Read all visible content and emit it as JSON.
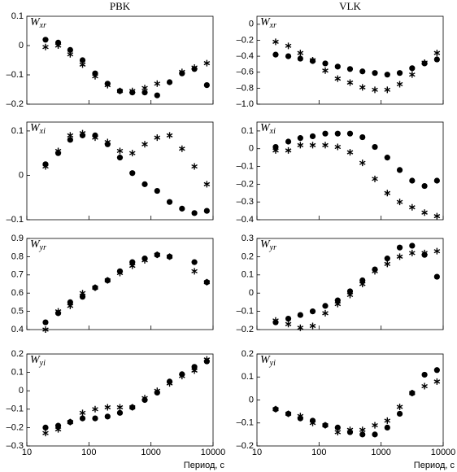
{
  "chart_data": [
    {
      "type": "scatter",
      "title": "PBK",
      "ylabel": "W",
      "ylabel_sub": "xr",
      "log_x": true,
      "show_xtick_labels": false,
      "x": [
        20,
        32,
        50,
        79,
        126,
        200,
        316,
        501,
        794,
        1259,
        1995,
        3162,
        5012,
        7943
      ],
      "xlim": [
        10,
        10000
      ],
      "xticks": [
        10,
        100,
        1000,
        10000
      ],
      "ylim": [
        -0.2,
        0.1
      ],
      "yticks": [
        {
          "value": -0.2,
          "label": "–0.2"
        },
        {
          "value": -0.1,
          "label": "–0.1"
        },
        0,
        0.1
      ],
      "series": [
        {
          "marker": "circle",
          "color": "#000000",
          "values": [
            0.02,
            0.01,
            -0.015,
            -0.05,
            -0.095,
            -0.13,
            -0.155,
            -0.16,
            -0.16,
            -0.17,
            -0.125,
            -0.095,
            -0.08,
            -0.135
          ]
        },
        {
          "marker": "star",
          "color": "#000000",
          "values": [
            -0.005,
            0,
            -0.03,
            -0.065,
            -0.105,
            -0.135,
            -0.155,
            -0.155,
            -0.145,
            -0.13,
            null,
            -0.09,
            -0.075,
            -0.06
          ]
        }
      ]
    },
    {
      "type": "scatter",
      "title": "VLK",
      "ylabel": "W",
      "ylabel_sub": "xr",
      "log_x": true,
      "show_xtick_labels": false,
      "x": [
        20,
        32,
        50,
        79,
        126,
        200,
        316,
        501,
        794,
        1259,
        1995,
        3162,
        5012,
        7943
      ],
      "xlim": [
        10,
        10000
      ],
      "xticks": [
        10,
        100,
        1000,
        10000
      ],
      "ylim": [
        -1.0,
        0.1
      ],
      "yticks": [
        {
          "value": -1.0,
          "label": "–1.0"
        },
        {
          "value": -0.8,
          "label": "–0.8"
        },
        {
          "value": -0.6,
          "label": "–0.6"
        },
        {
          "value": -0.4,
          "label": "–0.4"
        },
        {
          "value": -0.2,
          "label": "–0.2"
        },
        0
      ],
      "series": [
        {
          "marker": "circle",
          "color": "#000000",
          "values": [
            -0.38,
            -0.4,
            -0.43,
            -0.46,
            -0.49,
            -0.53,
            -0.56,
            -0.59,
            -0.61,
            -0.63,
            -0.61,
            -0.55,
            -0.49,
            -0.44
          ]
        },
        {
          "marker": "star",
          "color": "#000000",
          "values": [
            -0.22,
            -0.27,
            -0.36,
            -0.45,
            -0.58,
            -0.68,
            -0.73,
            -0.79,
            -0.82,
            -0.82,
            -0.75,
            -0.63,
            -0.48,
            -0.36
          ]
        }
      ]
    },
    {
      "type": "scatter",
      "ylabel": "W",
      "ylabel_sub": "xi",
      "log_x": true,
      "show_xtick_labels": false,
      "x": [
        20,
        32,
        50,
        79,
        126,
        200,
        316,
        501,
        794,
        1259,
        1995,
        3162,
        5012,
        7943
      ],
      "xlim": [
        10,
        10000
      ],
      "xticks": [
        10,
        100,
        1000,
        10000
      ],
      "ylim": [
        -0.1,
        0.12
      ],
      "yticks": [
        {
          "value": -0.1,
          "label": "–0.1"
        },
        0,
        0.1
      ],
      "series": [
        {
          "marker": "circle",
          "color": "#000000",
          "values": [
            0.025,
            0.05,
            0.08,
            0.09,
            0.09,
            0.07,
            0.04,
            0.005,
            -0.02,
            -0.035,
            -0.06,
            -0.075,
            -0.085,
            -0.08
          ]
        },
        {
          "marker": "star",
          "color": "#000000",
          "values": [
            0.02,
            0.055,
            0.09,
            0.095,
            0.085,
            0.075,
            0.055,
            0.05,
            0.07,
            0.085,
            0.09,
            0.06,
            0.02,
            -0.02
          ]
        }
      ]
    },
    {
      "type": "scatter",
      "ylabel": "W",
      "ylabel_sub": "xi",
      "log_x": true,
      "show_xtick_labels": false,
      "x": [
        20,
        32,
        50,
        79,
        126,
        200,
        316,
        501,
        794,
        1259,
        1995,
        3162,
        5012,
        7943
      ],
      "xlim": [
        10,
        10000
      ],
      "xticks": [
        10,
        100,
        1000,
        10000
      ],
      "ylim": [
        -0.4,
        0.15
      ],
      "yticks": [
        {
          "value": -0.4,
          "label": "–0.4"
        },
        {
          "value": -0.3,
          "label": "–0.3"
        },
        {
          "value": -0.2,
          "label": "–0.2"
        },
        {
          "value": -0.1,
          "label": "–0.1"
        },
        0,
        0.1
      ],
      "series": [
        {
          "marker": "circle",
          "color": "#000000",
          "values": [
            0.01,
            0.04,
            0.06,
            0.07,
            0.085,
            0.085,
            0.085,
            0.065,
            0.01,
            -0.05,
            -0.12,
            -0.18,
            -0.21,
            -0.18
          ]
        },
        {
          "marker": "star",
          "color": "#000000",
          "values": [
            -0.01,
            -0.01,
            0.02,
            0.02,
            0.02,
            0.01,
            -0.02,
            -0.08,
            -0.17,
            -0.25,
            -0.3,
            -0.33,
            -0.36,
            -0.38
          ]
        }
      ]
    },
    {
      "type": "scatter",
      "ylabel": "W",
      "ylabel_sub": "yr",
      "log_x": true,
      "show_xtick_labels": false,
      "x": [
        20,
        32,
        50,
        79,
        126,
        200,
        316,
        501,
        794,
        1259,
        1995,
        3162,
        5012,
        7943
      ],
      "xlim": [
        10,
        10000
      ],
      "xticks": [
        10,
        100,
        1000,
        10000
      ],
      "ylim": [
        0.4,
        0.9
      ],
      "yticks": [
        0.4,
        0.5,
        0.6,
        0.7,
        0.8,
        0.9
      ],
      "series": [
        {
          "marker": "circle",
          "color": "#000000",
          "values": [
            0.44,
            0.49,
            0.55,
            0.58,
            0.63,
            0.67,
            0.72,
            0.77,
            0.79,
            0.81,
            0.8,
            null,
            0.77,
            0.66
          ]
        },
        {
          "marker": "star",
          "color": "#000000",
          "values": [
            0.4,
            0.5,
            0.53,
            0.6,
            0.63,
            0.67,
            0.71,
            0.75,
            0.78,
            0.81,
            0.8,
            null,
            0.72,
            0.66
          ]
        }
      ]
    },
    {
      "type": "scatter",
      "ylabel": "W",
      "ylabel_sub": "yr",
      "log_x": true,
      "show_xtick_labels": false,
      "x": [
        20,
        32,
        50,
        79,
        126,
        200,
        316,
        501,
        794,
        1259,
        1995,
        3162,
        5012,
        7943
      ],
      "xlim": [
        10,
        10000
      ],
      "xticks": [
        10,
        100,
        1000,
        10000
      ],
      "ylim": [
        -0.2,
        0.3
      ],
      "yticks": [
        {
          "value": -0.2,
          "label": "–0.2"
        },
        {
          "value": -0.1,
          "label": "–0.1"
        },
        0,
        0.1,
        0.2,
        0.3
      ],
      "series": [
        {
          "marker": "circle",
          "color": "#000000",
          "values": [
            -0.16,
            -0.14,
            -0.12,
            -0.1,
            -0.07,
            -0.04,
            0.01,
            0.07,
            0.13,
            0.19,
            0.25,
            0.26,
            0.21,
            0.09
          ]
        },
        {
          "marker": "star",
          "color": "#000000",
          "values": [
            -0.15,
            -0.17,
            -0.19,
            -0.18,
            -0.11,
            -0.06,
            -0.01,
            0.05,
            0.12,
            0.16,
            0.2,
            0.22,
            0.22,
            0.23
          ]
        }
      ]
    },
    {
      "type": "scatter",
      "ylabel": "W",
      "ylabel_sub": "yi",
      "xlabel": "Период, с",
      "log_x": true,
      "show_xtick_labels": true,
      "x": [
        20,
        32,
        50,
        79,
        126,
        200,
        316,
        501,
        794,
        1259,
        1995,
        3162,
        5012,
        7943
      ],
      "xlim": [
        10,
        10000
      ],
      "xticks": [
        10,
        100,
        1000,
        10000
      ],
      "ylim": [
        -0.3,
        0.2
      ],
      "yticks": [
        {
          "value": -0.3,
          "label": "–0.3"
        },
        {
          "value": -0.2,
          "label": "–0.2"
        },
        {
          "value": -0.1,
          "label": "–0.1"
        },
        0,
        0.1,
        0.2
      ],
      "series": [
        {
          "marker": "circle",
          "color": "#000000",
          "values": [
            -0.2,
            -0.19,
            -0.17,
            -0.15,
            -0.15,
            -0.14,
            -0.12,
            -0.09,
            -0.05,
            -0.01,
            0.05,
            0.09,
            0.13,
            0.16
          ]
        },
        {
          "marker": "star",
          "color": "#000000",
          "values": [
            -0.23,
            -0.21,
            -0.17,
            -0.12,
            -0.1,
            -0.09,
            -0.09,
            -0.09,
            -0.04,
            0,
            0.04,
            0.08,
            0.11,
            0.17
          ]
        }
      ]
    },
    {
      "type": "scatter",
      "ylabel": "W",
      "ylabel_sub": "yi",
      "xlabel": "Период, с",
      "log_x": true,
      "show_xtick_labels": true,
      "x": [
        20,
        32,
        50,
        79,
        126,
        200,
        316,
        501,
        794,
        1259,
        1995,
        3162,
        5012,
        7943
      ],
      "xlim": [
        10,
        10000
      ],
      "xticks": [
        10,
        100,
        1000,
        10000
      ],
      "ylim": [
        -0.2,
        0.2
      ],
      "yticks": [
        {
          "value": -0.2,
          "label": "–0.2"
        },
        {
          "value": -0.1,
          "label": "–0.1"
        },
        0,
        0.1,
        0.2
      ],
      "series": [
        {
          "marker": "circle",
          "color": "#000000",
          "values": [
            -0.04,
            -0.06,
            -0.08,
            -0.09,
            -0.11,
            -0.12,
            -0.14,
            -0.15,
            -0.15,
            -0.12,
            -0.06,
            0.03,
            0.11,
            0.13
          ]
        },
        {
          "marker": "star",
          "color": "#000000",
          "values": [
            -0.04,
            -0.06,
            -0.07,
            -0.1,
            -0.11,
            -0.14,
            -0.13,
            -0.13,
            -0.11,
            -0.09,
            -0.03,
            0.03,
            0.06,
            0.08
          ]
        }
      ]
    }
  ]
}
